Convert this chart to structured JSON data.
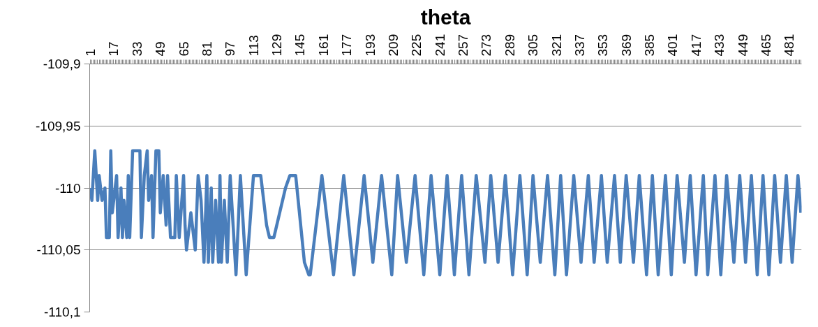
{
  "chart_data": {
    "type": "line",
    "title": "theta",
    "x": [
      1,
      2,
      4,
      6,
      7,
      9,
      11,
      12,
      14,
      15,
      16,
      19,
      20,
      22,
      23,
      24,
      26,
      27,
      28,
      30,
      35,
      36,
      38,
      40,
      41,
      43,
      44,
      46,
      48,
      49,
      51,
      53,
      54,
      56,
      59,
      60,
      62,
      65,
      66,
      67,
      70,
      73,
      75,
      77,
      79,
      81,
      82,
      84,
      85,
      87,
      89,
      90,
      91,
      93,
      95,
      97,
      101,
      104,
      108,
      113,
      118,
      119,
      120,
      122,
      124,
      127,
      129,
      131,
      135,
      138,
      142,
      148,
      151,
      152,
      160,
      168,
      175,
      182,
      189,
      195,
      201,
      208,
      212,
      218,
      224,
      230,
      235,
      241,
      246,
      251,
      256,
      261,
      266,
      272,
      276,
      281,
      286,
      291,
      296,
      301,
      305,
      310,
      315,
      320,
      324,
      328,
      333,
      338,
      343,
      347,
      352,
      356,
      361,
      365,
      369,
      374,
      378,
      383,
      387,
      391,
      396,
      400,
      404,
      409,
      413,
      417,
      422,
      425,
      430,
      434,
      438,
      443,
      447,
      451,
      455,
      459,
      463,
      467,
      471,
      475,
      479,
      483,
      487,
      489
    ],
    "series": [
      {
        "color": "#4a7ebb",
        "values": [
          -110.0,
          -110.01,
          -109.97,
          -110.01,
          -109.99,
          -110.01,
          -110.0,
          -110.04,
          -110.04,
          -109.97,
          -110.02,
          -109.99,
          -110.04,
          -110.0,
          -110.04,
          -110.01,
          -110.04,
          -109.99,
          -110.04,
          -109.97,
          -109.97,
          -110.04,
          -109.99,
          -109.97,
          -110.01,
          -109.99,
          -110.04,
          -109.97,
          -109.97,
          -110.02,
          -109.99,
          -110.03,
          -109.99,
          -110.04,
          -110.04,
          -109.99,
          -110.04,
          -109.99,
          -110.03,
          -110.05,
          -110.02,
          -110.05,
          -109.99,
          -110.01,
          -110.06,
          -109.99,
          -110.06,
          -110.0,
          -110.06,
          -110.01,
          -110.06,
          -109.99,
          -110.06,
          -110.01,
          -110.06,
          -109.99,
          -110.07,
          -109.99,
          -110.07,
          -109.99,
          -109.99,
          -110.0,
          -110.01,
          -110.03,
          -110.04,
          -110.04,
          -110.03,
          -110.02,
          -110.0,
          -109.99,
          -109.99,
          -110.06,
          -110.07,
          -110.07,
          -109.99,
          -110.07,
          -109.99,
          -110.07,
          -109.99,
          -110.06,
          -109.99,
          -110.07,
          -109.99,
          -110.06,
          -109.99,
          -110.07,
          -109.99,
          -110.07,
          -109.99,
          -110.07,
          -109.99,
          -110.07,
          -109.99,
          -110.06,
          -109.99,
          -110.06,
          -109.99,
          -110.07,
          -109.99,
          -110.07,
          -109.99,
          -110.06,
          -109.99,
          -110.07,
          -109.99,
          -110.07,
          -109.99,
          -110.06,
          -109.99,
          -110.06,
          -109.99,
          -110.06,
          -109.99,
          -110.06,
          -109.99,
          -110.06,
          -109.99,
          -110.07,
          -109.99,
          -110.07,
          -109.99,
          -110.07,
          -109.99,
          -110.06,
          -109.99,
          -110.07,
          -109.99,
          -110.07,
          -109.99,
          -110.07,
          -109.99,
          -110.06,
          -109.99,
          -110.06,
          -109.99,
          -110.07,
          -109.99,
          -110.07,
          -109.99,
          -110.06,
          -109.99,
          -110.06,
          -109.99,
          -110.02
        ]
      }
    ],
    "xlim": [
      0.5,
      489.5
    ],
    "xticks": [
      1,
      17,
      33,
      49,
      65,
      81,
      97,
      113,
      129,
      145,
      161,
      177,
      193,
      209,
      225,
      241,
      257,
      273,
      289,
      305,
      321,
      337,
      353,
      369,
      385,
      401,
      417,
      433,
      449,
      465,
      481
    ],
    "ylim": [
      -110.1,
      -109.9
    ],
    "yticks": [
      {
        "value": -109.9,
        "label": "-109,9"
      },
      {
        "value": -109.95,
        "label": "-109,95"
      },
      {
        "value": -110.0,
        "label": "-110"
      },
      {
        "value": -110.05,
        "label": "-110,05"
      },
      {
        "value": -110.1,
        "label": "-110,1"
      }
    ],
    "grid": "y",
    "marker": "none",
    "line_style": "solid"
  }
}
